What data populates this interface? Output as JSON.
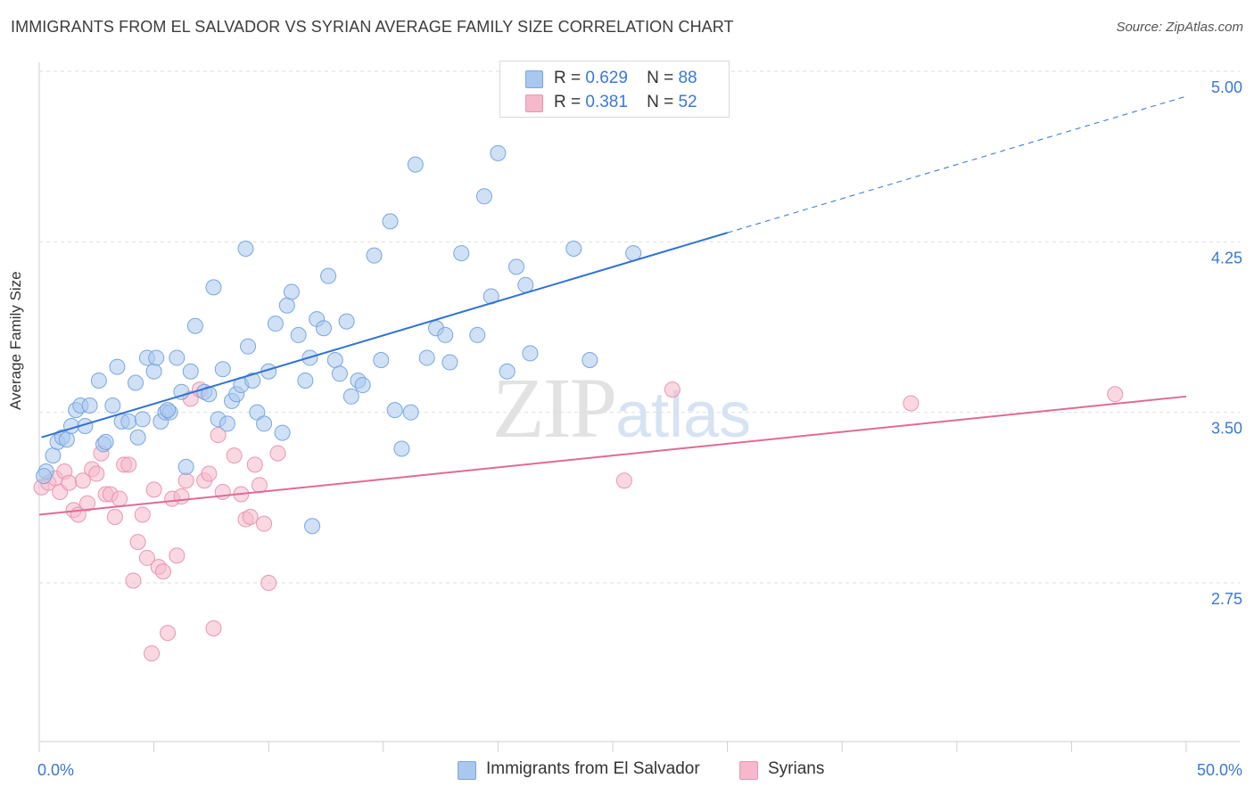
{
  "header": {
    "title": "IMMIGRANTS FROM EL SALVADOR VS SYRIAN AVERAGE FAMILY SIZE CORRELATION CHART",
    "source": "Source: ZipAtlas.com"
  },
  "watermark": {
    "zip": "ZIP",
    "atlas": "atlas"
  },
  "legend": {
    "rows": [
      {
        "r_label": "R =",
        "r_value": "0.629",
        "n_label": "N =",
        "n_value": "88"
      },
      {
        "r_label": "R =",
        "r_value": "0.381",
        "n_label": "N =",
        "n_value": "52"
      }
    ]
  },
  "colors": {
    "blue_fill": "#a9c8ee",
    "blue_stroke": "#7aa6de",
    "blue_line": "#2f73d0",
    "pink_fill": "#f6b8cb",
    "pink_stroke": "#e896b1",
    "pink_line": "#e06a95",
    "tick_label": "#3a78d4",
    "grid": "#dddddd"
  },
  "chart_data": {
    "type": "scatter",
    "title": "IMMIGRANTS FROM EL SALVADOR VS SYRIAN AVERAGE FAMILY SIZE CORRELATION CHART",
    "xlabel": "",
    "ylabel": "Average Family Size",
    "xlim": [
      0,
      50
    ],
    "ylim": [
      2.0,
      5.08
    ],
    "x_tick_labels": [
      "0.0%",
      "50.0%"
    ],
    "y_ticks": [
      2.75,
      3.5,
      4.25,
      5.0
    ],
    "y_tick_labels": [
      "2.75",
      "3.50",
      "4.25",
      "5.00"
    ],
    "grid": true,
    "legend_position": "top-center",
    "series": [
      {
        "name": "Immigrants from El Salvador",
        "color": "#a9c8ee",
        "trend": {
          "x0": 0.1,
          "y0": 3.39,
          "x1": 30.0,
          "y1": 4.29,
          "dash_to_x": 50.0,
          "dash_to_y": 4.89
        },
        "points": [
          [
            0.3,
            3.24
          ],
          [
            0.6,
            3.31
          ],
          [
            0.8,
            3.37
          ],
          [
            1.0,
            3.39
          ],
          [
            1.2,
            3.38
          ],
          [
            1.4,
            3.44
          ],
          [
            1.6,
            3.51
          ],
          [
            1.8,
            3.53
          ],
          [
            2.0,
            3.44
          ],
          [
            2.2,
            3.53
          ],
          [
            2.6,
            3.64
          ],
          [
            2.8,
            3.36
          ],
          [
            2.9,
            3.37
          ],
          [
            3.2,
            3.53
          ],
          [
            3.4,
            3.7
          ],
          [
            3.6,
            3.46
          ],
          [
            3.9,
            3.46
          ],
          [
            4.2,
            3.63
          ],
          [
            4.3,
            3.39
          ],
          [
            4.5,
            3.47
          ],
          [
            4.7,
            3.74
          ],
          [
            5.0,
            3.68
          ],
          [
            5.1,
            3.74
          ],
          [
            5.3,
            3.46
          ],
          [
            5.5,
            3.5
          ],
          [
            5.7,
            3.5
          ],
          [
            6.0,
            3.74
          ],
          [
            6.2,
            3.59
          ],
          [
            6.4,
            3.26
          ],
          [
            6.6,
            3.68
          ],
          [
            6.8,
            3.88
          ],
          [
            7.2,
            3.59
          ],
          [
            7.4,
            3.58
          ],
          [
            7.6,
            4.05
          ],
          [
            7.8,
            3.47
          ],
          [
            8.0,
            3.69
          ],
          [
            8.2,
            3.45
          ],
          [
            8.4,
            3.55
          ],
          [
            8.6,
            3.58
          ],
          [
            8.8,
            3.62
          ],
          [
            9.0,
            4.22
          ],
          [
            9.1,
            3.79
          ],
          [
            9.3,
            3.64
          ],
          [
            9.5,
            3.5
          ],
          [
            9.8,
            3.45
          ],
          [
            10.0,
            3.68
          ],
          [
            10.3,
            3.89
          ],
          [
            10.6,
            3.41
          ],
          [
            10.8,
            3.97
          ],
          [
            11.0,
            4.03
          ],
          [
            11.3,
            3.84
          ],
          [
            11.6,
            3.64
          ],
          [
            11.8,
            3.74
          ],
          [
            12.1,
            3.91
          ],
          [
            12.4,
            3.87
          ],
          [
            12.6,
            4.1
          ],
          [
            12.9,
            3.73
          ],
          [
            13.1,
            3.67
          ],
          [
            13.4,
            3.9
          ],
          [
            13.6,
            3.57
          ],
          [
            13.9,
            3.64
          ],
          [
            14.1,
            3.62
          ],
          [
            14.6,
            4.19
          ],
          [
            14.9,
            3.73
          ],
          [
            15.3,
            4.34
          ],
          [
            15.5,
            3.51
          ],
          [
            15.8,
            3.34
          ],
          [
            16.2,
            3.5
          ],
          [
            16.4,
            4.59
          ],
          [
            16.9,
            3.74
          ],
          [
            17.3,
            3.87
          ],
          [
            17.7,
            3.84
          ],
          [
            17.9,
            3.72
          ],
          [
            18.4,
            4.2
          ],
          [
            19.1,
            3.84
          ],
          [
            19.4,
            4.45
          ],
          [
            19.7,
            4.01
          ],
          [
            20.0,
            4.64
          ],
          [
            20.4,
            3.68
          ],
          [
            20.8,
            4.14
          ],
          [
            21.2,
            4.06
          ],
          [
            21.4,
            3.76
          ],
          [
            23.3,
            4.22
          ],
          [
            24.0,
            3.73
          ],
          [
            25.9,
            4.2
          ],
          [
            11.9,
            3.0
          ],
          [
            5.6,
            3.51
          ],
          [
            0.2,
            3.22
          ]
        ]
      },
      {
        "name": "Syrians",
        "color": "#f6b8cb",
        "trend": {
          "x0": 0.0,
          "y0": 3.05,
          "x1": 50.0,
          "y1": 3.57
        },
        "points": [
          [
            0.1,
            3.17
          ],
          [
            0.4,
            3.19
          ],
          [
            0.7,
            3.21
          ],
          [
            0.9,
            3.15
          ],
          [
            1.1,
            3.24
          ],
          [
            1.3,
            3.19
          ],
          [
            1.5,
            3.07
          ],
          [
            1.7,
            3.05
          ],
          [
            1.9,
            3.2
          ],
          [
            2.1,
            3.1
          ],
          [
            2.3,
            3.25
          ],
          [
            2.5,
            3.23
          ],
          [
            2.7,
            3.32
          ],
          [
            2.9,
            3.14
          ],
          [
            3.1,
            3.14
          ],
          [
            3.3,
            3.04
          ],
          [
            3.5,
            3.12
          ],
          [
            3.7,
            3.27
          ],
          [
            3.9,
            3.27
          ],
          [
            4.1,
            2.76
          ],
          [
            4.3,
            2.93
          ],
          [
            4.5,
            3.05
          ],
          [
            4.7,
            2.86
          ],
          [
            4.9,
            2.44
          ],
          [
            5.0,
            3.16
          ],
          [
            5.2,
            2.82
          ],
          [
            5.4,
            2.8
          ],
          [
            5.6,
            2.53
          ],
          [
            5.8,
            3.12
          ],
          [
            6.0,
            2.87
          ],
          [
            6.2,
            3.13
          ],
          [
            6.4,
            3.2
          ],
          [
            6.6,
            3.56
          ],
          [
            7.0,
            3.6
          ],
          [
            7.2,
            3.2
          ],
          [
            7.4,
            3.23
          ],
          [
            7.6,
            2.55
          ],
          [
            7.8,
            3.4
          ],
          [
            8.0,
            3.15
          ],
          [
            8.5,
            3.31
          ],
          [
            8.8,
            3.14
          ],
          [
            9.0,
            3.03
          ],
          [
            9.2,
            3.04
          ],
          [
            9.4,
            3.27
          ],
          [
            9.6,
            3.18
          ],
          [
            9.8,
            3.01
          ],
          [
            10.0,
            2.75
          ],
          [
            10.4,
            3.32
          ],
          [
            25.5,
            3.2
          ],
          [
            27.6,
            3.6
          ],
          [
            38.0,
            3.54
          ],
          [
            46.9,
            3.58
          ]
        ]
      }
    ]
  },
  "bottom_legend": {
    "items": [
      {
        "label": "Immigrants from El Salvador"
      },
      {
        "label": "Syrians"
      }
    ]
  }
}
